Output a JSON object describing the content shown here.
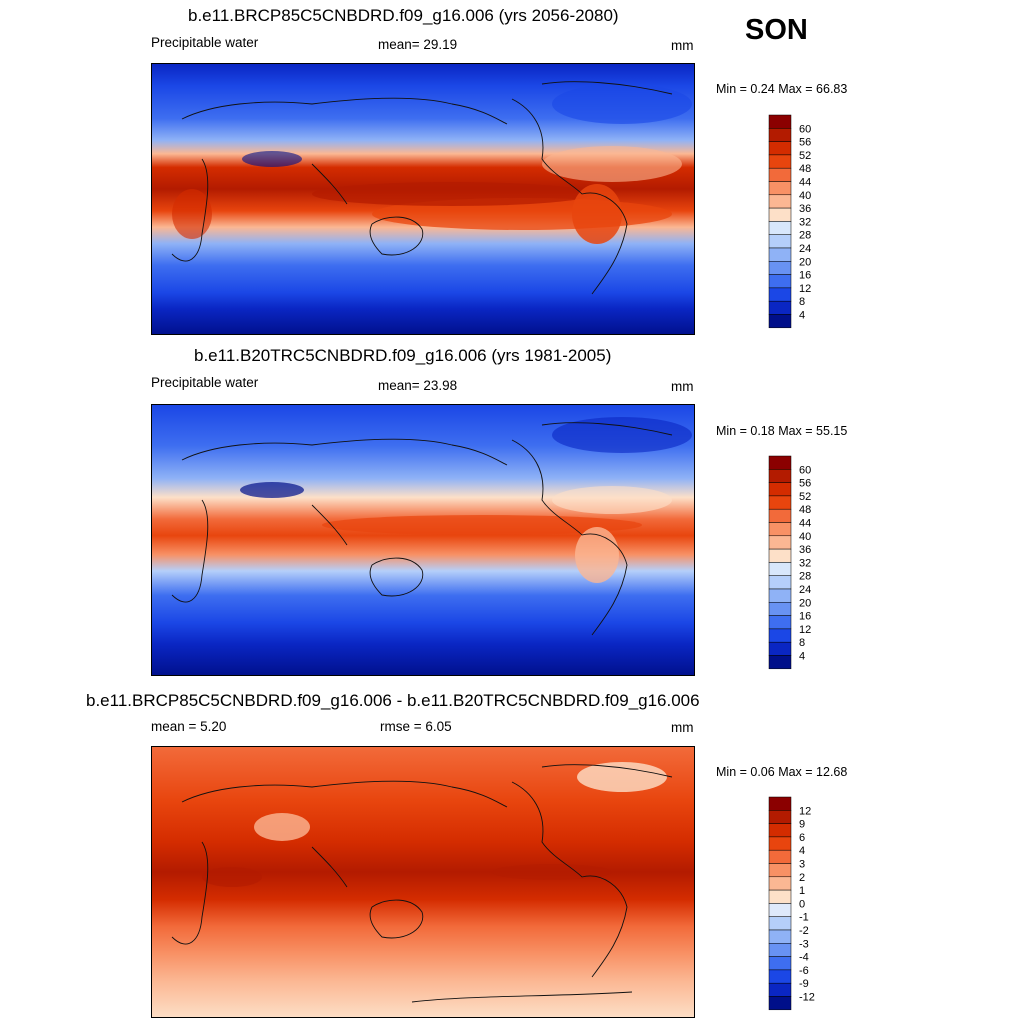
{
  "season": "SON",
  "panels": [
    {
      "title": "b.e11.BRCP85C5CNBDRD.f09_g16.006 (yrs 2056-2080)",
      "left_label": "Precipitable water",
      "center_label": "mean=  29.19",
      "units": "mm",
      "minmax": "Min =   0.24 Max =  66.83",
      "colorbar": {
        "ticks": [
          "60",
          "56",
          "52",
          "48",
          "44",
          "40",
          "36",
          "32",
          "28",
          "24",
          "20",
          "16",
          "12",
          "8",
          "4"
        ],
        "colors": [
          "#8b0000",
          "#b31b00",
          "#d42c00",
          "#e8450e",
          "#f26a3a",
          "#f89165",
          "#fbb793",
          "#fde0c8",
          "#d8e7fb",
          "#b5cffa",
          "#8fb2f6",
          "#6892f3",
          "#3e6ef0",
          "#1b47e6",
          "#0a26c3",
          "#000f8a"
        ]
      }
    },
    {
      "title": "b.e11.B20TRC5CNBDRD.f09_g16.006 (yrs 1981-2005)",
      "left_label": "Precipitable water",
      "center_label": "mean=  23.98",
      "units": "mm",
      "minmax": "Min =   0.18 Max =  55.15",
      "colorbar": {
        "ticks": [
          "60",
          "56",
          "52",
          "48",
          "44",
          "40",
          "36",
          "32",
          "28",
          "24",
          "20",
          "16",
          "12",
          "8",
          "4"
        ],
        "colors": [
          "#8b0000",
          "#b31b00",
          "#d42c00",
          "#e8450e",
          "#f26a3a",
          "#f89165",
          "#fbb793",
          "#fde0c8",
          "#d8e7fb",
          "#b5cffa",
          "#8fb2f6",
          "#6892f3",
          "#3e6ef0",
          "#1b47e6",
          "#0a26c3",
          "#000f8a"
        ]
      }
    },
    {
      "title": "b.e11.BRCP85C5CNBDRD.f09_g16.006 - b.e11.B20TRC5CNBDRD.f09_g16.006",
      "left_label": "mean =   5.20",
      "center_label": "rmse =   6.05",
      "units": "mm",
      "minmax": "Min =   0.06 Max =  12.68",
      "colorbar": {
        "ticks": [
          "12",
          "9",
          "6",
          "4",
          "3",
          "2",
          "1",
          "0",
          "-1",
          "-2",
          "-3",
          "-4",
          "-6",
          "-9",
          "-12"
        ],
        "colors": [
          "#8b0000",
          "#b31b00",
          "#d42c00",
          "#e8450e",
          "#f26a3a",
          "#f89165",
          "#fbb793",
          "#fde0c8",
          "#dfe9fb",
          "#b5cffa",
          "#8fb2f6",
          "#6892f3",
          "#3e6ef0",
          "#1b47e6",
          "#0a26c3",
          "#000f8a"
        ]
      }
    }
  ]
}
